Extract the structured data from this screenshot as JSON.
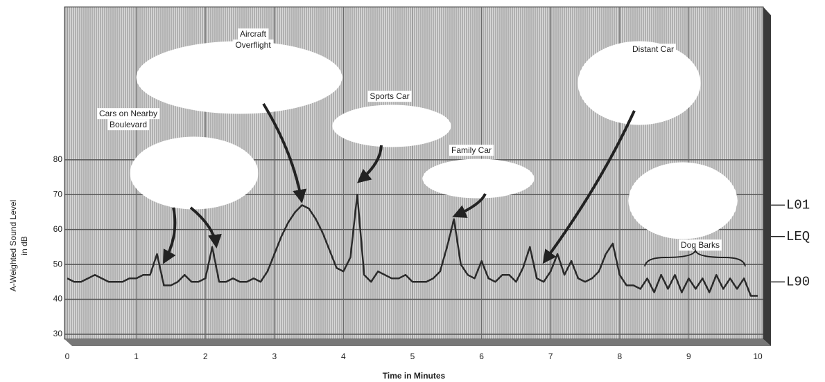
{
  "chart_data": {
    "type": "line",
    "ylabel": [
      "A-Weighted Sound Level",
      "in dB"
    ],
    "xlabel": "Time in Minutes",
    "x": [
      0,
      0.1,
      0.2,
      0.3,
      0.4,
      0.5,
      0.6,
      0.7,
      0.8,
      0.9,
      1,
      1.1,
      1.2,
      1.3,
      1.4,
      1.5,
      1.6,
      1.7,
      1.8,
      1.9,
      2,
      2.1,
      2.2,
      2.3,
      2.4,
      2.5,
      2.6,
      2.7,
      2.8,
      2.9,
      3,
      3.1,
      3.2,
      3.3,
      3.4,
      3.5,
      3.6,
      3.7,
      3.8,
      3.9,
      4,
      4.1,
      4.2,
      4.3,
      4.4,
      4.5,
      4.6,
      4.7,
      4.8,
      4.9,
      5,
      5.1,
      5.2,
      5.3,
      5.4,
      5.5,
      5.6,
      5.7,
      5.8,
      5.9,
      6,
      6.1,
      6.2,
      6.3,
      6.4,
      6.5,
      6.6,
      6.7,
      6.8,
      6.9,
      7,
      7.1,
      7.2,
      7.3,
      7.4,
      7.5,
      7.6,
      7.7,
      7.8,
      7.9,
      8,
      8.1,
      8.2,
      8.3,
      8.4,
      8.5,
      8.6,
      8.7,
      8.8,
      8.9,
      9,
      9.1,
      9.2,
      9.3,
      9.4,
      9.5,
      9.6,
      9.7,
      9.8,
      9.9,
      10
    ],
    "values": [
      46,
      45,
      45,
      46,
      47,
      46,
      45,
      45,
      45,
      46,
      46,
      47,
      47,
      53,
      44,
      44,
      45,
      47,
      45,
      45,
      46,
      55,
      45,
      45,
      46,
      45,
      45,
      46,
      45,
      48,
      53,
      58,
      62,
      65,
      67,
      66,
      63,
      59,
      54,
      49,
      48,
      52,
      70,
      47,
      45,
      48,
      47,
      46,
      46,
      47,
      45,
      45,
      45,
      46,
      48,
      55,
      63,
      50,
      47,
      46,
      51,
      46,
      45,
      47,
      47,
      45,
      49,
      55,
      46,
      45,
      48,
      53,
      47,
      51,
      46,
      45,
      46,
      48,
      53,
      56,
      47,
      44,
      44,
      43,
      46,
      42,
      47,
      43,
      47,
      42,
      46,
      43,
      46,
      42,
      47,
      43,
      46,
      43,
      46,
      41,
      41
    ],
    "color": "#2a2a2a",
    "xlim": [
      0,
      10
    ],
    "xticks": [
      0,
      1,
      2,
      3,
      4,
      5,
      6,
      7,
      8,
      9,
      10
    ],
    "ylim": [
      29,
      123
    ],
    "yticks": [
      30,
      40,
      50,
      60,
      70,
      80
    ],
    "grid": true,
    "reference_levels": [
      {
        "value": 67,
        "label": "L01"
      },
      {
        "value": 58,
        "label": "LEQ"
      },
      {
        "value": 45,
        "label": "L90"
      }
    ],
    "annotations": [
      [
        "Cars on Nearby",
        "Boulevard"
      ],
      [
        "Aircraft",
        "Overflight"
      ],
      [
        "Sports Car"
      ],
      [
        "Family Car"
      ],
      [
        "Distant Car"
      ],
      [
        "Dog Barks"
      ]
    ]
  }
}
